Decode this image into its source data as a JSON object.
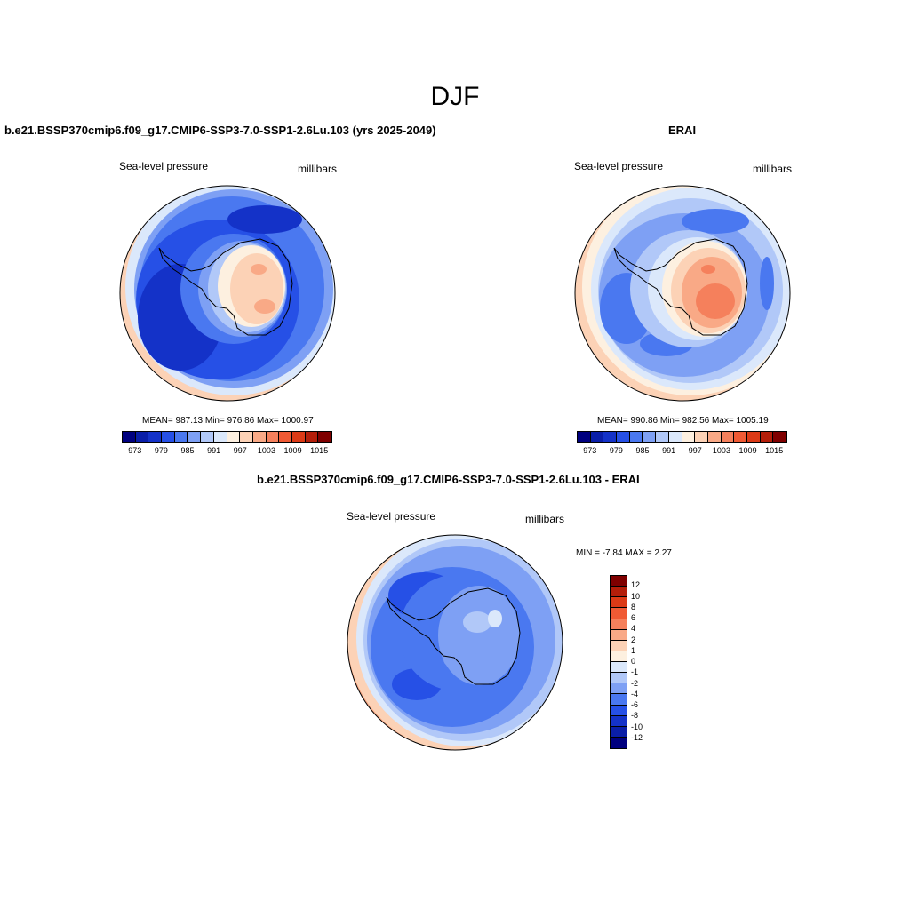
{
  "title": "DJF",
  "panel1": {
    "title": "b.e21.BSSP370cmip6.f09_g17.CMIP6-SSP3-7.0-SSP1-2.6Lu.103 (yrs 2025-2049)",
    "left_label": "Sea-level pressure",
    "right_label": "millibars",
    "stats": "MEAN= 987.13  Min= 976.86  Max= 1000.97"
  },
  "panel2": {
    "title": "ERAI",
    "left_label": "Sea-level pressure",
    "right_label": "millibars",
    "stats": "MEAN= 990.86  Min= 982.56  Max= 1005.19"
  },
  "panel3": {
    "title": "b.e21.BSSP370cmip6.f09_g17.CMIP6-SSP3-7.0-SSP1-2.6Lu.103 - ERAI",
    "left_label": "Sea-level pressure",
    "right_label": "millibars",
    "stats": "MIN =  -7.84 MAX =   2.27"
  },
  "colorbar_abs": {
    "colors": [
      "#00007f",
      "#0a1ea8",
      "#1432c8",
      "#2650e6",
      "#4a78f0",
      "#7ea0f4",
      "#b1c8f8",
      "#dbe8fb",
      "#fdf0e0",
      "#fcd2b6",
      "#f9a986",
      "#f5805c",
      "#f05a34",
      "#dc3a16",
      "#b41e0a",
      "#7f0000"
    ],
    "ticks": [
      "973",
      "979",
      "985",
      "991",
      "997",
      "1003",
      "1009",
      "1015"
    ]
  },
  "colorbar_diff": {
    "colors": [
      "#7f0000",
      "#b41e0a",
      "#dc3a16",
      "#f05a34",
      "#f5805c",
      "#f9a986",
      "#fcd2b6",
      "#fdf0e0",
      "#dbe8fb",
      "#b1c8f8",
      "#7ea0f4",
      "#4a78f0",
      "#2650e6",
      "#1432c8",
      "#0a1ea8",
      "#00007f"
    ],
    "ticks": [
      "12",
      "10",
      "8",
      "6",
      "4",
      "2",
      "1",
      "0",
      "-1",
      "-2",
      "-4",
      "-6",
      "-8",
      "-10",
      "-12"
    ]
  }
}
